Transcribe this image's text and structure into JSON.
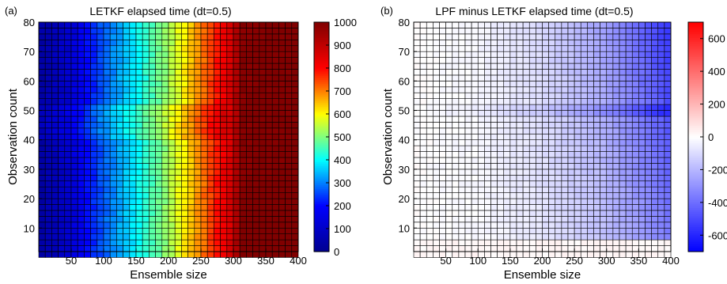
{
  "chart_data": [
    {
      "type": "heatmap",
      "panel_label": "(a)",
      "title": "LETKF elapsed  time (dt=0.5)",
      "xlabel": "Ensemble size",
      "ylabel": "Observation count",
      "xlim": [
        0,
        400
      ],
      "ylim": [
        2,
        80
      ],
      "x_ticks": [
        50,
        100,
        150,
        200,
        250,
        300,
        350,
        400
      ],
      "y_ticks": [
        10,
        20,
        30,
        40,
        50,
        60,
        70,
        80
      ],
      "grid": {
        "nx": 40,
        "ny": 40,
        "x_step": 10,
        "y_step": 2,
        "x_start": 10,
        "y_start": 2
      },
      "colormap": "jet",
      "colors": [
        "#00008f",
        "#0000ff",
        "#00ffff",
        "#ffff00",
        "#ff0000",
        "#800000"
      ],
      "colorbar": {
        "min": 0,
        "max": 1000,
        "ticks": [
          0,
          100,
          200,
          300,
          400,
          500,
          600,
          700,
          800,
          900,
          1000
        ]
      },
      "approx_values": {
        "columns_x": [
          10,
          50,
          100,
          150,
          200,
          250,
          300,
          320,
          350,
          400
        ],
        "elapsed_time": [
          40,
          110,
          260,
          380,
          510,
          680,
          860,
          990,
          1000,
          1000
        ]
      }
    },
    {
      "type": "heatmap",
      "panel_label": "(b)",
      "title": "LPF minus LETKF elapsed  time (dt=0.5)",
      "xlabel": "Ensemble size",
      "ylabel": "Observation count",
      "xlim": [
        0,
        400
      ],
      "ylim": [
        2,
        80
      ],
      "x_ticks": [
        50,
        100,
        150,
        200,
        250,
        300,
        350,
        400
      ],
      "y_ticks": [
        10,
        20,
        30,
        40,
        50,
        60,
        70,
        80
      ],
      "grid": {
        "nx": 40,
        "ny": 40,
        "x_step": 10,
        "y_step": 2,
        "x_start": 10,
        "y_start": 2
      },
      "colormap": "blue-white-red",
      "colors": [
        "#0000ff",
        "#ffffff",
        "#ff0000"
      ],
      "colorbar": {
        "min": -700,
        "max": 700,
        "ticks": [
          -600,
          -400,
          -200,
          0,
          200,
          400,
          600
        ]
      },
      "approx_values": {
        "columns_x": [
          10,
          100,
          200,
          300,
          350,
          400
        ],
        "difference_time": [
          0,
          -20,
          -100,
          -260,
          -400,
          -550
        ]
      }
    }
  ]
}
